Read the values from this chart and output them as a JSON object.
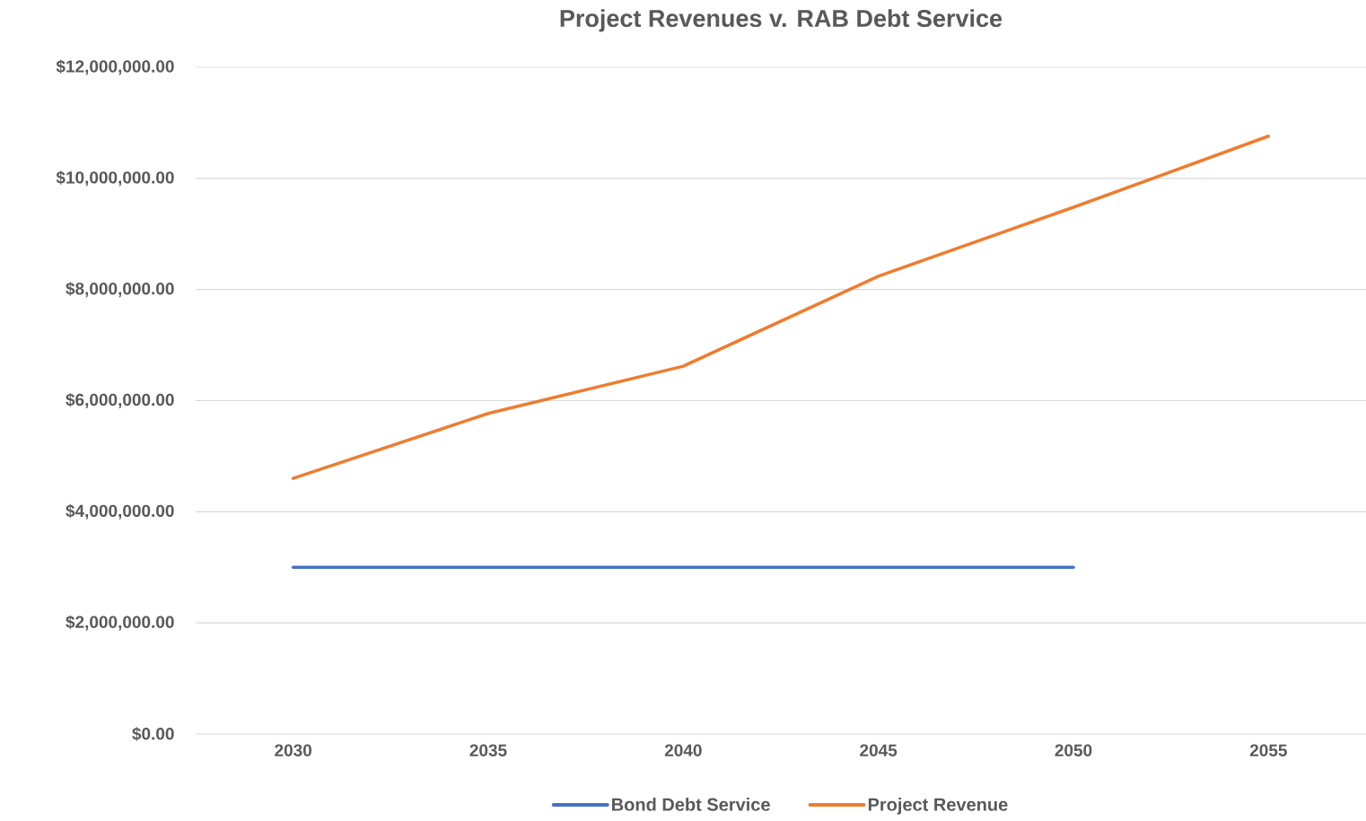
{
  "chart_data": {
    "type": "line",
    "title": "Project Revenues v. RAB Debt Service",
    "categories": [
      "2030",
      "2035",
      "2040",
      "2045",
      "2050",
      "2055"
    ],
    "series": [
      {
        "name": "Bond Debt Service",
        "color": "#4472c4",
        "values": [
          3000000,
          3000000,
          3000000,
          3000000,
          3000000,
          null
        ]
      },
      {
        "name": "Project Revenue",
        "color": "#ed7d31",
        "values": [
          4600000,
          5770000,
          6620000,
          8240000,
          9480000,
          10760000
        ]
      }
    ],
    "ylim": [
      0,
      12000000
    ],
    "yticks": [
      {
        "value": 0,
        "label": "$0.00"
      },
      {
        "value": 2000000,
        "label": "$2,000,000.00"
      },
      {
        "value": 4000000,
        "label": "$4,000,000.00"
      },
      {
        "value": 6000000,
        "label": "$6,000,000.00"
      },
      {
        "value": 8000000,
        "label": "$8,000,000.00"
      },
      {
        "value": 10000000,
        "label": "$10,000,000.00"
      },
      {
        "value": 12000000,
        "label": "$12,000,000.00"
      }
    ],
    "grid": "y",
    "legend": "bottom"
  }
}
